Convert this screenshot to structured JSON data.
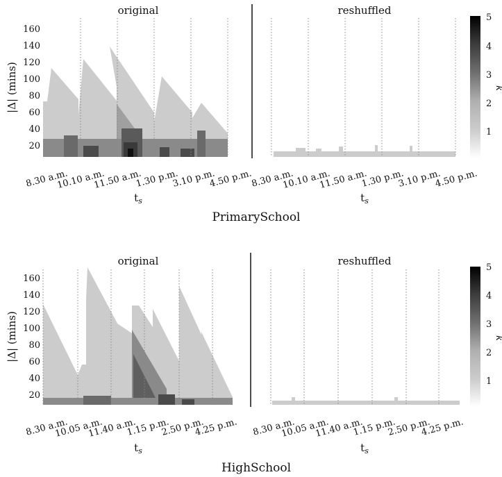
{
  "chart_data": [
    {
      "type": "heatmap",
      "title": "PrimarySchool",
      "panels": [
        {
          "title": "original",
          "scenario": "original"
        },
        {
          "title": "reshuffled",
          "scenario": "reshuffled"
        }
      ],
      "xlabel": "t",
      "xlabel_sub": "s",
      "ylabel": "|Δ| (mins)",
      "ylim": [
        0,
        170
      ],
      "yticks": [
        20,
        40,
        60,
        80,
        100,
        120,
        140,
        160
      ],
      "xlim": [
        0,
        500
      ],
      "xticks": [
        {
          "label": "8.30 a.m.",
          "t": 0
        },
        {
          "label": "10.10 a.m.",
          "t": 100
        },
        {
          "label": "11.50 a.m.",
          "t": 200
        },
        {
          "label": "1.30 p.m.",
          "t": 300
        },
        {
          "label": "3.10 p.m.",
          "t": 400
        },
        {
          "label": "4.50 p.m.",
          "t": 500
        }
      ],
      "vlines": [
        100,
        200,
        300,
        400,
        500
      ],
      "cells": [
        {
          "t": [
            0,
            500
          ],
          "band": [
            0,
            10
          ],
          "k": 1
        },
        {
          "t": [
            0,
            15
          ],
          "band": [
            10,
            70
          ],
          "k": 1
        },
        {
          "t": [
            15,
            100
          ],
          "band": [
            10,
            110
          ],
          "k": 1,
          "decay": true
        },
        {
          "t": [
            100,
            200
          ],
          "band": [
            10,
            120
          ],
          "k": 1,
          "decay": true
        },
        {
          "t": [
            200,
            305
          ],
          "band": [
            10,
            135
          ],
          "k": 1,
          "decay": true
        },
        {
          "t": [
            305,
            415
          ],
          "band": [
            10,
            100
          ],
          "k": 1,
          "decay": true
        },
        {
          "t": [
            415,
            500
          ],
          "band": [
            10,
            75
          ],
          "k": 1,
          "decay": true
        }
      ],
      "k_range": [
        0,
        5
      ],
      "colorbar_label": "k",
      "colorbar_ticks": [
        1,
        2,
        3,
        4,
        5
      ]
    },
    {
      "type": "heatmap",
      "title": "HighSchool",
      "panels": [
        {
          "title": "original",
          "scenario": "original"
        },
        {
          "title": "reshuffled",
          "scenario": "reshuffled"
        }
      ],
      "xlabel": "t",
      "xlabel_sub": "s",
      "ylabel": "|Δ| (mins)",
      "ylim": [
        0,
        170
      ],
      "yticks": [
        20,
        40,
        60,
        80,
        100,
        120,
        140,
        160
      ],
      "xlim": [
        0,
        500
      ],
      "xticks": [
        {
          "label": "8.30 a.m.",
          "t": 0
        },
        {
          "label": "10.05 a.m.",
          "t": 95
        },
        {
          "label": "11.40 a.m.",
          "t": 190
        },
        {
          "label": "1.15 p.m.",
          "t": 285
        },
        {
          "label": "2.50 p.m.",
          "t": 380
        },
        {
          "label": "4.25 p.m.",
          "t": 475
        }
      ],
      "vlines": [
        95,
        190,
        285,
        380,
        475
      ],
      "k_range": [
        0,
        5
      ],
      "colorbar_label": "k",
      "colorbar_ticks": [
        1,
        2,
        3,
        4,
        5
      ]
    }
  ]
}
